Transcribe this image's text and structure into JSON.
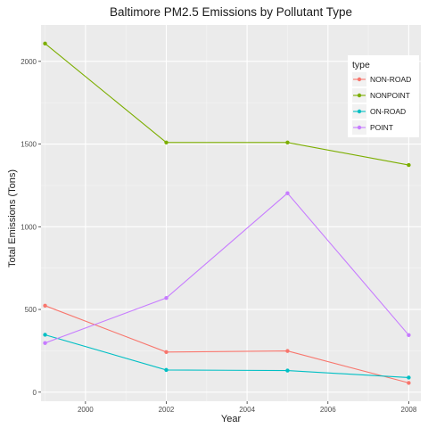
{
  "chart_data": {
    "type": "line",
    "title": "Baltimore PM2.5 Emissions by Pollutant Type",
    "xlabel": "Year",
    "ylabel": "Total Emissions (Tons)",
    "x": [
      1999,
      2002,
      2005,
      2008
    ],
    "xlim": [
      1998.9,
      2008.3
    ],
    "ylim": [
      -55,
      2220
    ],
    "x_ticks": [
      2000,
      2002,
      2004,
      2006,
      2008
    ],
    "x_tick_labels": [
      "2000",
      "2002",
      "2004",
      "2006",
      "2008"
    ],
    "y_ticks": [
      0,
      500,
      1000,
      1500,
      2000
    ],
    "y_tick_labels": [
      "0",
      "500",
      "1000",
      "1500",
      "2000"
    ],
    "grid": true,
    "legend": {
      "title": "type",
      "position": "top-right"
    },
    "series": [
      {
        "name": "NON-ROAD",
        "color": "#F8766D",
        "values": [
          522.9,
          242.7,
          248.9,
          55.8
        ]
      },
      {
        "name": "NONPOINT",
        "color": "#7CAE00",
        "values": [
          2107.6,
          1509.5,
          1509.5,
          1373.2
        ]
      },
      {
        "name": "ON-ROAD",
        "color": "#00BFC4",
        "values": [
          346.8,
          134.3,
          130.4,
          88.3
        ]
      },
      {
        "name": "POINT",
        "color": "#C77CFF",
        "values": [
          296.8,
          569.3,
          1202.5,
          344.98
        ]
      }
    ]
  }
}
